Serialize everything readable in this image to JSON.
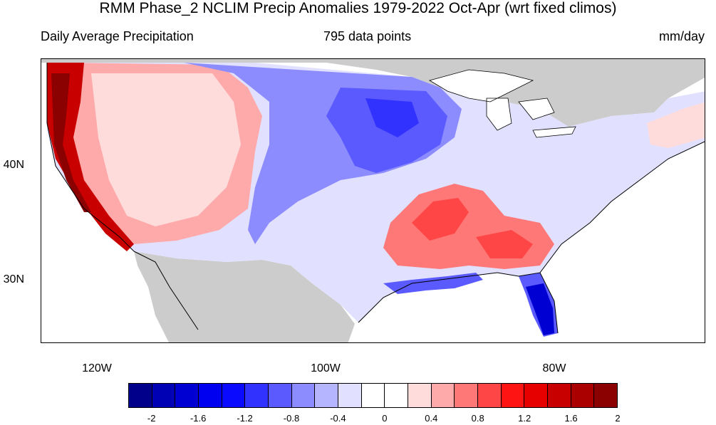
{
  "title": "RMM Phase_2 NCLIM Precip Anomalies 1979-2022 Oct-Apr (wrt fixed climos)",
  "subtitle_left": "Daily Average Precipitation",
  "subtitle_center": "795 data points",
  "subtitle_right": "mm/day",
  "lat_labels": [
    "40N",
    "30N"
  ],
  "lon_labels": [
    "120W",
    "100W",
    "80W"
  ],
  "colorbar": {
    "colors": [
      "#00008b",
      "#0000b4",
      "#0000d2",
      "#0000f0",
      "#0a0aff",
      "#3232ff",
      "#5a5aff",
      "#8c8cff",
      "#b4b4ff",
      "#e1e1ff",
      "#ffffff",
      "#ffffff",
      "#ffdcdc",
      "#ffaaaa",
      "#ff7878",
      "#ff4646",
      "#ff1414",
      "#e60000",
      "#c80000",
      "#aa0000",
      "#8b0000"
    ],
    "labels": [
      "-2",
      "-1.6",
      "-1.2",
      "-0.8",
      "-0.4",
      "0",
      "0.4",
      "0.8",
      "1.2",
      "1.6",
      "2"
    ]
  },
  "map": {
    "ocean_color": "#ffffff",
    "land_outside_color": "#cccccc",
    "regions": [
      {
        "name": "pacific-coast-band",
        "level": 2.0
      },
      {
        "name": "western-mountains",
        "level": 0.6
      },
      {
        "name": "northern-plains",
        "level": -0.6
      },
      {
        "name": "central-plains",
        "level": -0.9
      },
      {
        "name": "southeast-wet",
        "level": 0.8
      },
      {
        "name": "gulf-coast",
        "level": -0.7
      },
      {
        "name": "florida",
        "level": -1.6
      },
      {
        "name": "northeast",
        "level": -0.2
      }
    ]
  }
}
